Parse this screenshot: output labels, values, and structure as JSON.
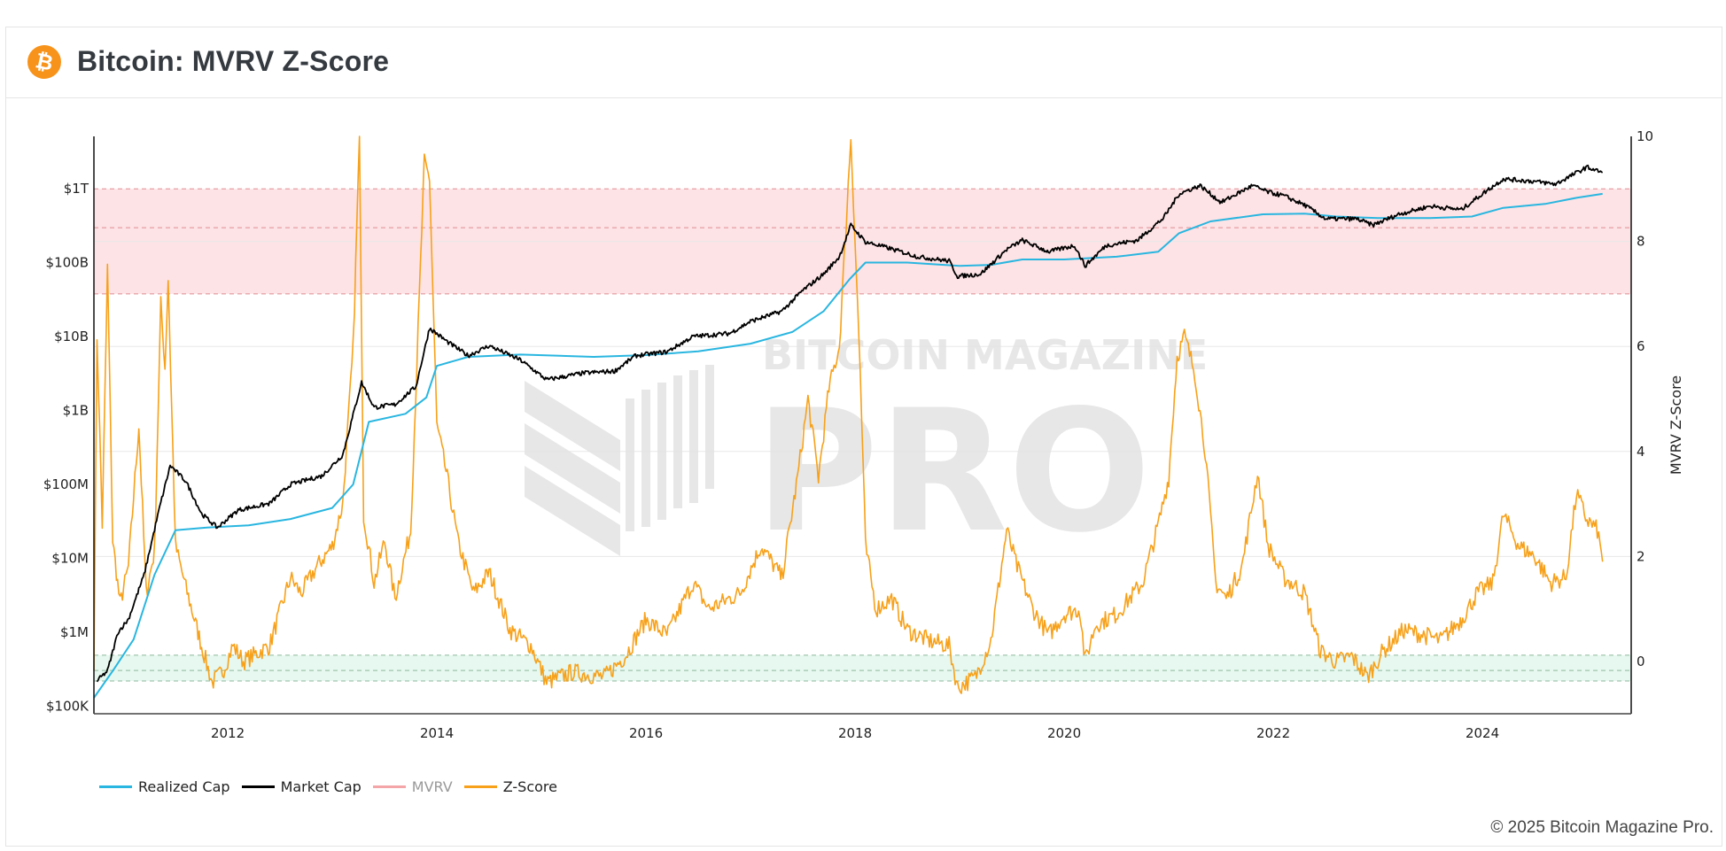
{
  "header": {
    "title": "Bitcoin: MVRV Z-Score",
    "icon": "bitcoin-icon",
    "icon_glyph": "₿",
    "icon_color": "#f7931a"
  },
  "legend": [
    {
      "label": "Realized Cap",
      "color": "#29b6e0",
      "hidden": false
    },
    {
      "label": "Market Cap",
      "color": "#000000",
      "hidden": false
    },
    {
      "label": "MVRV",
      "color": "#f4a5a8",
      "hidden": true
    },
    {
      "label": "Z-Score",
      "color": "#f7a11a",
      "hidden": false
    }
  ],
  "footer": {
    "copyright": "© 2025 Bitcoin Magazine Pro."
  },
  "watermark": {
    "line1": "BITCOIN MAGAZINE",
    "line2": "PRO"
  },
  "chart_data": {
    "type": "line",
    "title": "Bitcoin: MVRV Z-Score",
    "xlabel": "",
    "ylabel_left": "",
    "ylabel_right": "MVRV Z-Score",
    "x_ticks": [
      "2012",
      "2014",
      "2016",
      "2018",
      "2020",
      "2022",
      "2024"
    ],
    "x_range": [
      2010.72,
      2025.4
    ],
    "y_left_scale": "log",
    "y_left_ticks": [
      "$100K",
      "$1M",
      "$10M",
      "$100M",
      "$1B",
      "$10B",
      "$100B",
      "$1T"
    ],
    "y_left_range_usd": [
      80000,
      5000000000000
    ],
    "y_right_ticks": [
      "0",
      "2",
      "4",
      "6",
      "8",
      "10"
    ],
    "y_right_range": [
      -1,
      10
    ],
    "bands": [
      {
        "name": "overvalued-zone",
        "axis": "right",
        "from": 7.0,
        "to": 9.0,
        "mid_line": 8.26,
        "color": "#fde3e5",
        "line_color": "#e08c94"
      },
      {
        "name": "undervalued-zone",
        "axis": "right",
        "from": -0.37,
        "to": 0.12,
        "mid_line": -0.17,
        "color": "#e6f8ef",
        "line_color": "#8fb89c"
      }
    ],
    "grid": true,
    "legend_position": "bottom-left",
    "series": [
      {
        "name": "Market Cap",
        "axis": "left",
        "unit": "USD",
        "color": "#000000",
        "points": [
          [
            2010.75,
            220000.0
          ],
          [
            2010.85,
            300000.0
          ],
          [
            2010.95,
            1000000.0
          ],
          [
            2011.05,
            1500000.0
          ],
          [
            2011.2,
            6000000.0
          ],
          [
            2011.35,
            50000000.0
          ],
          [
            2011.45,
            180000000.0
          ],
          [
            2011.6,
            110000000.0
          ],
          [
            2011.75,
            40000000.0
          ],
          [
            2011.9,
            26000000.0
          ],
          [
            2012.1,
            45000000.0
          ],
          [
            2012.4,
            55000000.0
          ],
          [
            2012.6,
            100000000.0
          ],
          [
            2012.9,
            130000000.0
          ],
          [
            2013.1,
            250000000.0
          ],
          [
            2013.28,
            2400000000.0
          ],
          [
            2013.4,
            1100000000.0
          ],
          [
            2013.6,
            1200000000.0
          ],
          [
            2013.8,
            2100000000.0
          ],
          [
            2013.93,
            13000000000.0
          ],
          [
            2014.1,
            8500000000.0
          ],
          [
            2014.3,
            5500000000.0
          ],
          [
            2014.5,
            7500000000.0
          ],
          [
            2014.8,
            4800000000.0
          ],
          [
            2015.05,
            2600000000.0
          ],
          [
            2015.4,
            3200000000.0
          ],
          [
            2015.7,
            3400000000.0
          ],
          [
            2015.9,
            5500000000.0
          ],
          [
            2016.2,
            6200000000.0
          ],
          [
            2016.45,
            10000000000.0
          ],
          [
            2016.8,
            11000000000.0
          ],
          [
            2017.0,
            16000000000.0
          ],
          [
            2017.3,
            22000000000.0
          ],
          [
            2017.5,
            42000000000.0
          ],
          [
            2017.7,
            70000000000.0
          ],
          [
            2017.85,
            120000000000.0
          ],
          [
            2017.96,
            320000000000.0
          ],
          [
            2018.1,
            190000000000.0
          ],
          [
            2018.3,
            160000000000.0
          ],
          [
            2018.6,
            120000000000.0
          ],
          [
            2018.9,
            105000000000.0
          ],
          [
            2018.98,
            65000000000.0
          ],
          [
            2019.2,
            70000000000.0
          ],
          [
            2019.45,
            150000000000.0
          ],
          [
            2019.6,
            200000000000.0
          ],
          [
            2019.85,
            140000000000.0
          ],
          [
            2020.1,
            170000000000.0
          ],
          [
            2020.2,
            90000000000.0
          ],
          [
            2020.4,
            170000000000.0
          ],
          [
            2020.7,
            200000000000.0
          ],
          [
            2020.95,
            400000000000.0
          ],
          [
            2021.1,
            850000000000.0
          ],
          [
            2021.3,
            1100000000000.0
          ],
          [
            2021.5,
            650000000000.0
          ],
          [
            2021.8,
            1100000000000.0
          ],
          [
            2021.95,
            900000000000.0
          ],
          [
            2022.1,
            800000000000.0
          ],
          [
            2022.3,
            600000000000.0
          ],
          [
            2022.5,
            390000000000.0
          ],
          [
            2022.8,
            390000000000.0
          ],
          [
            2022.95,
            320000000000.0
          ],
          [
            2023.2,
            450000000000.0
          ],
          [
            2023.5,
            580000000000.0
          ],
          [
            2023.8,
            520000000000.0
          ],
          [
            2024.0,
            850000000000.0
          ],
          [
            2024.2,
            1350000000000.0
          ],
          [
            2024.5,
            1250000000000.0
          ],
          [
            2024.7,
            1150000000000.0
          ],
          [
            2024.85,
            1500000000000.0
          ],
          [
            2025.0,
            1950000000000.0
          ],
          [
            2025.15,
            1650000000000.0
          ]
        ]
      },
      {
        "name": "Realized Cap",
        "axis": "left",
        "unit": "USD",
        "color": "#29b6e0",
        "points": [
          [
            2010.72,
            130000.0
          ],
          [
            2010.9,
            300000.0
          ],
          [
            2011.1,
            800000.0
          ],
          [
            2011.3,
            6000000.0
          ],
          [
            2011.5,
            24000000.0
          ],
          [
            2011.8,
            26000000.0
          ],
          [
            2012.2,
            28000000.0
          ],
          [
            2012.6,
            34000000.0
          ],
          [
            2013.0,
            48000000.0
          ],
          [
            2013.2,
            100000000.0
          ],
          [
            2013.35,
            700000000.0
          ],
          [
            2013.7,
            900000000.0
          ],
          [
            2013.9,
            1500000000.0
          ],
          [
            2014.0,
            4000000000.0
          ],
          [
            2014.3,
            5300000000.0
          ],
          [
            2014.8,
            5700000000.0
          ],
          [
            2015.5,
            5300000000.0
          ],
          [
            2016.0,
            5600000000.0
          ],
          [
            2016.5,
            6300000000.0
          ],
          [
            2017.0,
            8000000000.0
          ],
          [
            2017.4,
            11500000000.0
          ],
          [
            2017.7,
            22000000000.0
          ],
          [
            2017.95,
            60000000000.0
          ],
          [
            2018.1,
            100000000000.0
          ],
          [
            2018.5,
            100000000000.0
          ],
          [
            2019.0,
            90000000000.0
          ],
          [
            2019.3,
            93000000000.0
          ],
          [
            2019.6,
            110000000000.0
          ],
          [
            2020.0,
            110000000000.0
          ],
          [
            2020.5,
            120000000000.0
          ],
          [
            2020.9,
            140000000000.0
          ],
          [
            2021.1,
            250000000000.0
          ],
          [
            2021.4,
            360000000000.0
          ],
          [
            2021.9,
            450000000000.0
          ],
          [
            2022.3,
            460000000000.0
          ],
          [
            2022.6,
            420000000000.0
          ],
          [
            2023.0,
            400000000000.0
          ],
          [
            2023.5,
            400000000000.0
          ],
          [
            2023.9,
            420000000000.0
          ],
          [
            2024.2,
            550000000000.0
          ],
          [
            2024.6,
            620000000000.0
          ],
          [
            2024.9,
            750000000000.0
          ],
          [
            2025.15,
            850000000000.0
          ]
        ]
      },
      {
        "name": "Z-Score",
        "axis": "right",
        "unit": "z",
        "color": "#f7a11a",
        "points": [
          [
            2010.72,
            0
          ],
          [
            2010.75,
            6.2
          ],
          [
            2010.8,
            2.6
          ],
          [
            2010.85,
            7.5
          ],
          [
            2010.9,
            2.3
          ],
          [
            2010.97,
            1.1
          ],
          [
            2011.05,
            1.8
          ],
          [
            2011.15,
            4.5
          ],
          [
            2011.22,
            1.3
          ],
          [
            2011.3,
            2.1
          ],
          [
            2011.36,
            6.8
          ],
          [
            2011.4,
            5.6
          ],
          [
            2011.43,
            7.3
          ],
          [
            2011.5,
            2.2
          ],
          [
            2011.6,
            1.4
          ],
          [
            2011.75,
            0.3
          ],
          [
            2011.85,
            -0.4
          ],
          [
            2011.95,
            -0.2
          ],
          [
            2012.05,
            0.3
          ],
          [
            2012.15,
            0.0
          ],
          [
            2012.4,
            0.3
          ],
          [
            2012.6,
            1.6
          ],
          [
            2012.7,
            1.3
          ],
          [
            2012.85,
            1.8
          ],
          [
            2013.0,
            2.2
          ],
          [
            2013.1,
            3.0
          ],
          [
            2013.2,
            6.0
          ],
          [
            2013.26,
            10.0
          ],
          [
            2013.3,
            2.8
          ],
          [
            2013.4,
            1.5
          ],
          [
            2013.5,
            2.3
          ],
          [
            2013.6,
            1.2
          ],
          [
            2013.75,
            2.5
          ],
          [
            2013.88,
            9.5
          ],
          [
            2013.93,
            9.2
          ],
          [
            2014.0,
            4.5
          ],
          [
            2014.1,
            3.5
          ],
          [
            2014.2,
            2.3
          ],
          [
            2014.35,
            1.3
          ],
          [
            2014.5,
            1.7
          ],
          [
            2014.7,
            0.6
          ],
          [
            2014.9,
            0.3
          ],
          [
            2015.05,
            -0.4
          ],
          [
            2015.3,
            -0.2
          ],
          [
            2015.6,
            -0.3
          ],
          [
            2015.8,
            0.1
          ],
          [
            2016.0,
            0.8
          ],
          [
            2016.2,
            0.5
          ],
          [
            2016.45,
            1.5
          ],
          [
            2016.6,
            1.0
          ],
          [
            2016.9,
            1.3
          ],
          [
            2017.1,
            2.2
          ],
          [
            2017.3,
            1.6
          ],
          [
            2017.45,
            3.5
          ],
          [
            2017.55,
            5.0
          ],
          [
            2017.65,
            3.5
          ],
          [
            2017.75,
            5.2
          ],
          [
            2017.85,
            6.0
          ],
          [
            2017.96,
            10.0
          ],
          [
            2018.05,
            5.5
          ],
          [
            2018.1,
            2.2
          ],
          [
            2018.2,
            1.0
          ],
          [
            2018.35,
            1.2
          ],
          [
            2018.5,
            0.6
          ],
          [
            2018.7,
            0.4
          ],
          [
            2018.9,
            0.3
          ],
          [
            2018.98,
            -0.5
          ],
          [
            2019.15,
            -0.3
          ],
          [
            2019.3,
            0.4
          ],
          [
            2019.45,
            2.5
          ],
          [
            2019.55,
            1.8
          ],
          [
            2019.7,
            1.0
          ],
          [
            2019.85,
            0.5
          ],
          [
            2020.0,
            0.9
          ],
          [
            2020.15,
            1.0
          ],
          [
            2020.2,
            0.0
          ],
          [
            2020.3,
            0.7
          ],
          [
            2020.5,
            0.9
          ],
          [
            2020.75,
            1.5
          ],
          [
            2020.9,
            2.6
          ],
          [
            2021.0,
            3.5
          ],
          [
            2021.08,
            5.8
          ],
          [
            2021.15,
            6.2
          ],
          [
            2021.25,
            5.5
          ],
          [
            2021.35,
            4.0
          ],
          [
            2021.45,
            1.5
          ],
          [
            2021.55,
            1.2
          ],
          [
            2021.7,
            1.8
          ],
          [
            2021.85,
            3.6
          ],
          [
            2021.95,
            2.2
          ],
          [
            2022.1,
            1.6
          ],
          [
            2022.3,
            1.3
          ],
          [
            2022.45,
            0.2
          ],
          [
            2022.6,
            0.0
          ],
          [
            2022.75,
            0.1
          ],
          [
            2022.9,
            -0.3
          ],
          [
            2023.05,
            0.2
          ],
          [
            2023.25,
            0.6
          ],
          [
            2023.45,
            0.5
          ],
          [
            2023.6,
            0.4
          ],
          [
            2023.8,
            0.8
          ],
          [
            2023.95,
            1.3
          ],
          [
            2024.1,
            1.5
          ],
          [
            2024.2,
            2.8
          ],
          [
            2024.35,
            2.2
          ],
          [
            2024.5,
            2.0
          ],
          [
            2024.65,
            1.5
          ],
          [
            2024.8,
            1.6
          ],
          [
            2024.9,
            3.2
          ],
          [
            2025.0,
            2.7
          ],
          [
            2025.1,
            2.5
          ],
          [
            2025.15,
            1.9
          ]
        ]
      }
    ]
  }
}
